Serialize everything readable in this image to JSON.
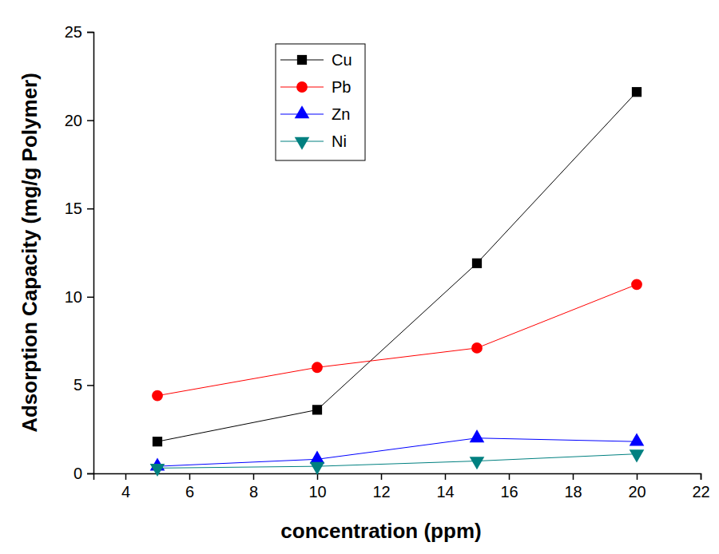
{
  "chart_data": {
    "type": "line",
    "x_label": "concentration (ppm)",
    "y_label": "Adsorption Capacity (mg/g Polymer)",
    "x": [
      5,
      10,
      15,
      20
    ],
    "series": [
      {
        "name": "Cu",
        "color": "#000000",
        "marker": "square",
        "values": [
          1.8,
          3.6,
          11.9,
          21.6
        ]
      },
      {
        "name": "Pb",
        "color": "#ff0000",
        "marker": "circle",
        "values": [
          4.4,
          6.0,
          7.1,
          10.7
        ]
      },
      {
        "name": "Zn",
        "color": "#0000ff",
        "marker": "triangle-up",
        "values": [
          0.4,
          0.8,
          2.0,
          1.8
        ]
      },
      {
        "name": "Ni",
        "color": "#008080",
        "marker": "triangle-down",
        "values": [
          0.3,
          0.4,
          0.7,
          1.1
        ]
      }
    ],
    "xlim": [
      3,
      22
    ],
    "xticks": [
      4,
      6,
      8,
      10,
      12,
      14,
      16,
      18,
      20,
      22
    ],
    "ylim": [
      0,
      25
    ],
    "yticks": [
      0,
      5,
      10,
      15,
      20,
      25
    ],
    "grid": false,
    "legend": "upper left"
  }
}
